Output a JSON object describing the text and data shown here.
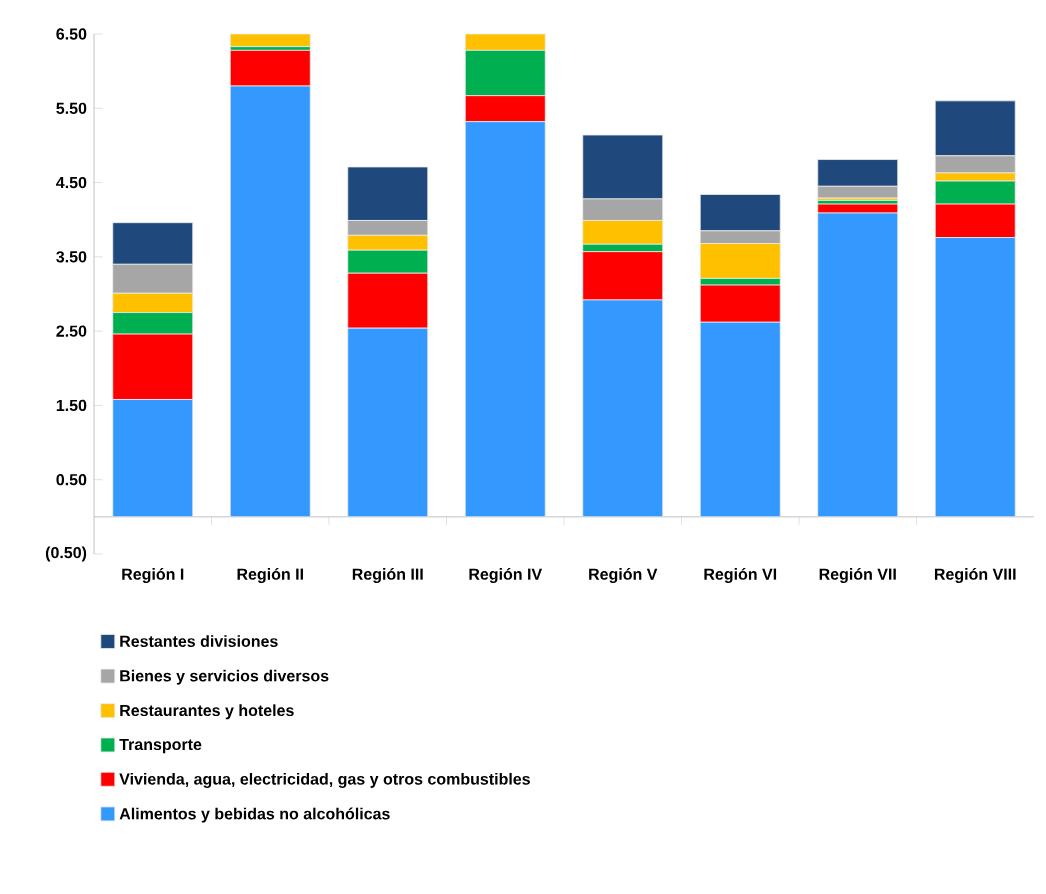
{
  "chart_data": {
    "type": "bar",
    "stacked": true,
    "categories": [
      "Región I",
      "Región II",
      "Región III",
      "Región IV",
      "Región V",
      "Región VI",
      "Región VII",
      "Región VIII"
    ],
    "series": [
      {
        "name": "Alimentos y bebidas no alcohólicas",
        "color": "#3399ff",
        "values": [
          1.58,
          5.8,
          2.54,
          5.32,
          2.92,
          2.62,
          4.09,
          3.76
        ]
      },
      {
        "name": "Vivienda, agua, electricidad, gas y otros combustibles",
        "color": "#ff0000",
        "values": [
          0.88,
          0.48,
          0.74,
          0.35,
          0.65,
          0.5,
          0.12,
          0.45
        ]
      },
      {
        "name": "Transporte",
        "color": "#00b050",
        "values": [
          0.29,
          0.05,
          0.31,
          0.61,
          0.1,
          0.09,
          0.05,
          0.31
        ]
      },
      {
        "name": "Restaurantes y hoteles",
        "color": "#ffc000",
        "values": [
          0.26,
          0.17,
          0.2,
          0.22,
          0.32,
          0.47,
          0.03,
          0.11
        ]
      },
      {
        "name": "Bienes y servicios diversos",
        "color": "#a6a6a6",
        "values": [
          0.39,
          null,
          0.2,
          null,
          0.29,
          0.17,
          0.16,
          0.23
        ]
      },
      {
        "name": "Restantes divisiones",
        "color": "#1f497d",
        "values": [
          0.56,
          null,
          0.72,
          null,
          0.86,
          0.49,
          0.36,
          0.74
        ]
      }
    ],
    "ylim": [
      -0.5,
      6.5
    ],
    "yticks": [
      {
        "value": -0.5,
        "label": "(0.50)"
      },
      {
        "value": 0.5,
        "label": "0.50"
      },
      {
        "value": 1.5,
        "label": "1.50"
      },
      {
        "value": 2.5,
        "label": "2.50"
      },
      {
        "value": 3.5,
        "label": "3.50"
      },
      {
        "value": 4.5,
        "label": "4.50"
      },
      {
        "value": 5.5,
        "label": "5.50"
      },
      {
        "value": 6.5,
        "label": "6.50"
      }
    ],
    "legend": "bottom"
  }
}
